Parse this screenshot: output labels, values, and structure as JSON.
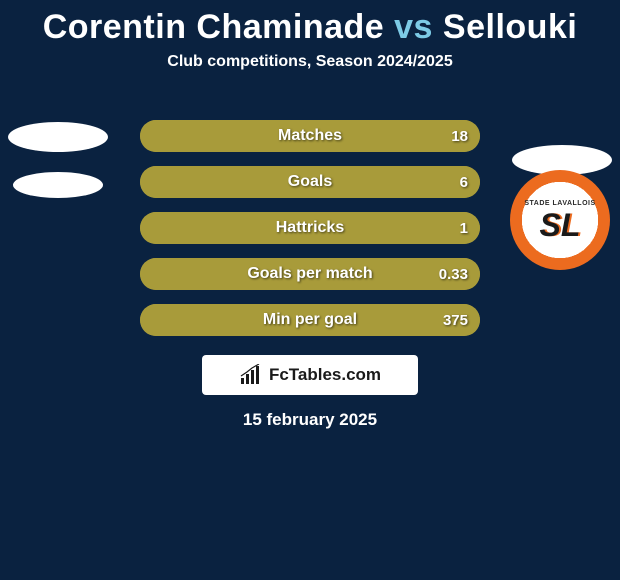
{
  "title": {
    "player1": "Corentin Chaminade",
    "vs": "vs",
    "player2": "Sellouki"
  },
  "subtitle": "Club competitions, Season 2024/2025",
  "colors": {
    "background": "#0a2240",
    "accent": "#7dcbe6",
    "bar_left": "#a89b3a",
    "bar_right": "#a89b3a",
    "bar_full": "#a89b3a",
    "text": "#ffffff",
    "badge_outer": "#ec6b1f",
    "badge_inner": "#ffffff"
  },
  "bars": {
    "height": 32,
    "radius": 16,
    "gap": 14,
    "label_fontsize": 16,
    "value_fontsize": 15,
    "rows": [
      {
        "label": "Matches",
        "left": "",
        "right": "18",
        "left_pct": 0,
        "right_pct": 100
      },
      {
        "label": "Goals",
        "left": "",
        "right": "6",
        "left_pct": 0,
        "right_pct": 100
      },
      {
        "label": "Hattricks",
        "left": "",
        "right": "1",
        "left_pct": 0,
        "right_pct": 100
      },
      {
        "label": "Goals per match",
        "left": "",
        "right": "0.33",
        "left_pct": 0,
        "right_pct": 100
      },
      {
        "label": "Min per goal",
        "left": "",
        "right": "375",
        "left_pct": 0,
        "right_pct": 100
      }
    ]
  },
  "logo": {
    "text": "FcTables.com"
  },
  "date": "15 february 2025",
  "badge": {
    "top_text": "STADE LAVALLOIS",
    "main_text": "SL"
  }
}
